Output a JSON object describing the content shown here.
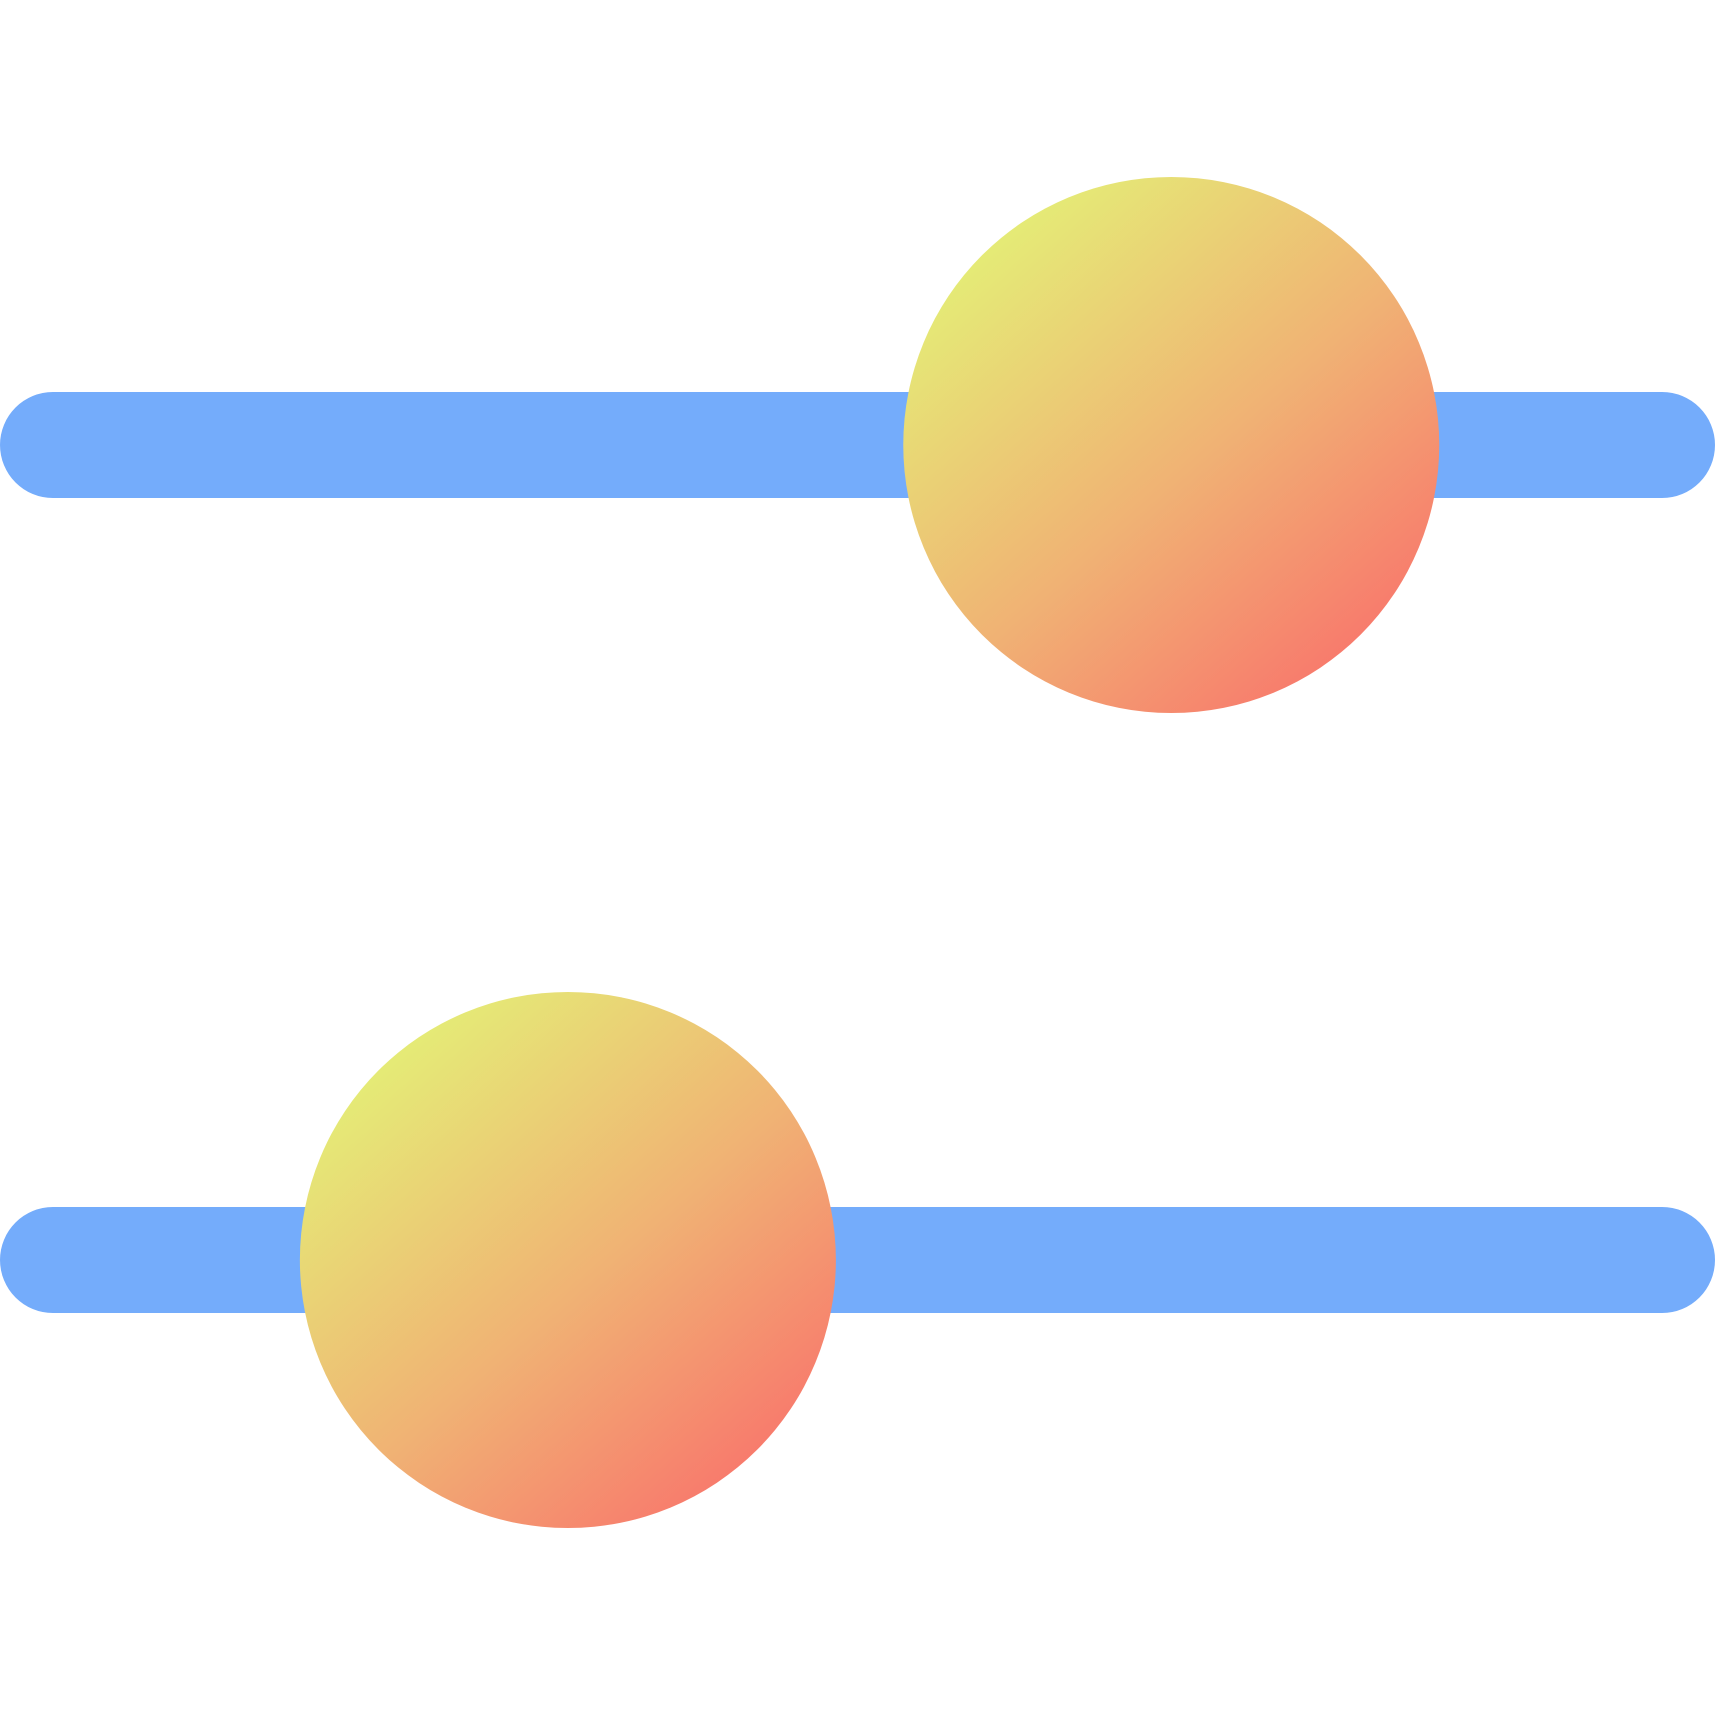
{
  "icon": {
    "name": "sliders-adjust-icon",
    "colors": {
      "track": "#74ACFB",
      "knob_gradient_start": "#E4EE76",
      "knob_gradient_mid": "#F0B274",
      "knob_gradient_end": "#F8786C"
    },
    "sliders": [
      {
        "name": "slider-top",
        "value": 0.695
      },
      {
        "name": "slider-bottom",
        "value": 0.32
      }
    ]
  }
}
